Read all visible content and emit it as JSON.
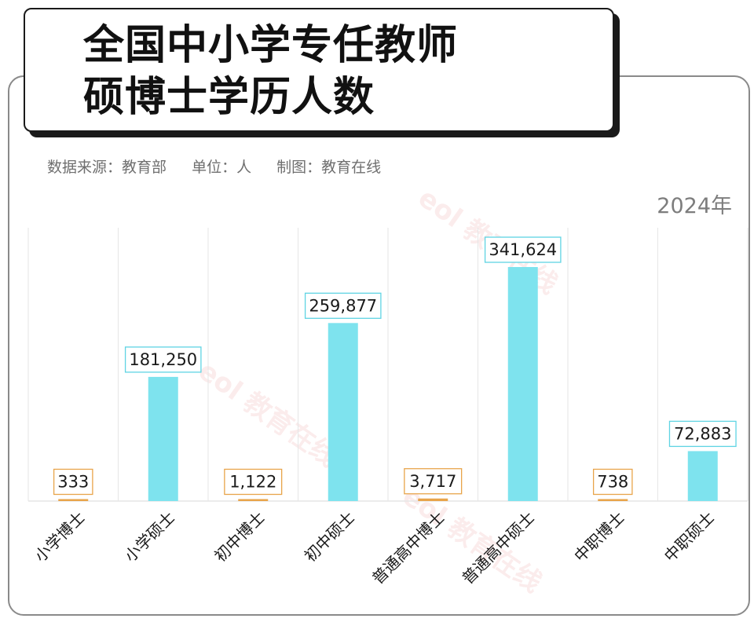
{
  "title": {
    "line1": "全国中小学专任教师",
    "line2": "硕博士学历人数"
  },
  "meta": {
    "source": "数据来源：教育部",
    "unit": "单位：人",
    "producer": "制图：教育在线"
  },
  "year_label": "2024年",
  "watermark": "eol 教育在线",
  "colors": {
    "doctor": "#e8a44a",
    "master": "#7ee3ee",
    "grid": "#e6e6e6",
    "label_text": "#1a1a1a"
  },
  "chart_data": {
    "type": "bar",
    "title": "全国中小学专任教师硕博士学历人数",
    "xlabel": "",
    "ylabel": "",
    "ylim": [
      0,
      400000
    ],
    "grid": "vertical",
    "categories": [
      "小学博士",
      "小学硕士",
      "初中博士",
      "初中硕士",
      "普通高中博士",
      "普通高中硕士",
      "中职博士",
      "中职硕士"
    ],
    "values": [
      333,
      181250,
      1122,
      259877,
      3717,
      341624,
      738,
      72883
    ],
    "value_labels": [
      "333",
      "181,250",
      "1,122",
      "259,877",
      "3,717",
      "341,624",
      "738",
      "72,883"
    ],
    "bar_kind": [
      "doctor",
      "master",
      "doctor",
      "master",
      "doctor",
      "master",
      "doctor",
      "master"
    ]
  }
}
